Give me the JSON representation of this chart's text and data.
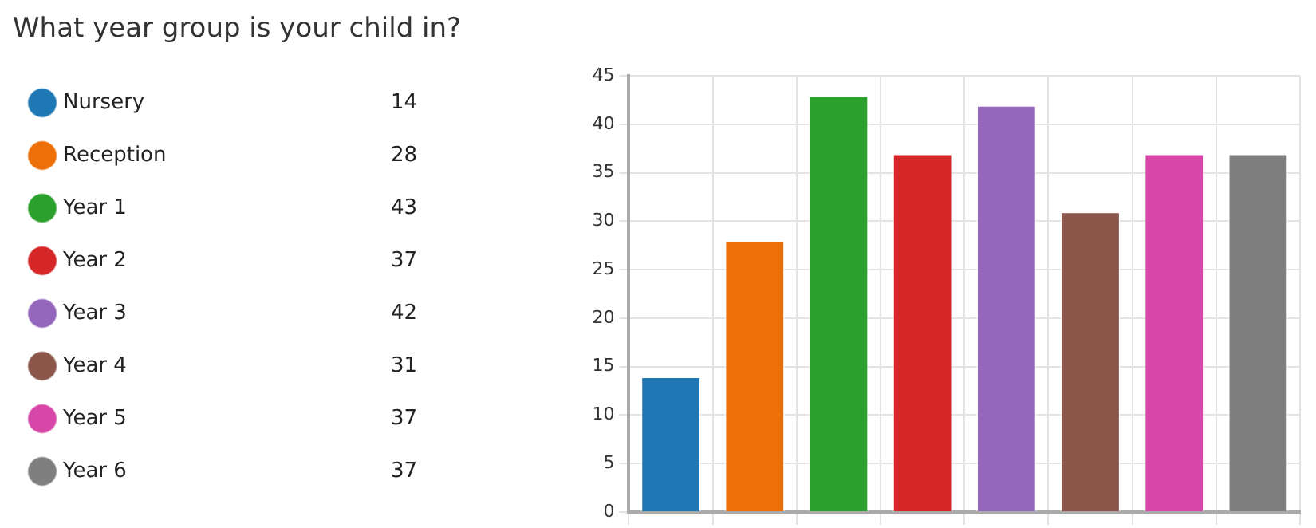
{
  "chart_data": {
    "type": "bar",
    "title": "What year group is your child in?",
    "categories": [
      null,
      null,
      null,
      null,
      null,
      null,
      null,
      null
    ],
    "series": [
      {
        "name": "Nursery",
        "color": "#1f77b4",
        "values": [
          14,
          null,
          null,
          null,
          null,
          null,
          null,
          null
        ]
      },
      {
        "name": "Reception",
        "color": "#ec7007",
        "values": [
          null,
          28,
          null,
          null,
          null,
          null,
          null,
          null
        ]
      },
      {
        "name": "Year 1",
        "color": "#2ca02c",
        "values": [
          null,
          null,
          43,
          null,
          null,
          null,
          null,
          null
        ]
      },
      {
        "name": "Year 2",
        "color": "#d62728",
        "values": [
          null,
          null,
          null,
          37,
          null,
          null,
          null,
          null
        ]
      },
      {
        "name": "Year 3",
        "color": "#9467bd",
        "values": [
          null,
          null,
          null,
          null,
          42,
          null,
          null,
          null
        ]
      },
      {
        "name": "Year 4",
        "color": "#8c564b",
        "values": [
          null,
          null,
          null,
          null,
          null,
          31,
          null,
          null
        ]
      },
      {
        "name": "Year 5",
        "color": "#d647a8",
        "values": [
          null,
          null,
          null,
          null,
          null,
          null,
          37,
          null
        ]
      },
      {
        "name": "Year 6",
        "color": "#7f7f7f",
        "values": [
          null,
          null,
          null,
          null,
          null,
          null,
          null,
          37
        ]
      }
    ],
    "ylim": [
      0,
      45
    ],
    "yticks": [
      0,
      5,
      10,
      15,
      20,
      25,
      30,
      35,
      40,
      45
    ],
    "annotations": [
      "14",
      "28",
      "43",
      "37",
      "42",
      "31",
      "37",
      "37"
    ],
    "grid": true,
    "legend": "left",
    "tick_labels": "y"
  }
}
